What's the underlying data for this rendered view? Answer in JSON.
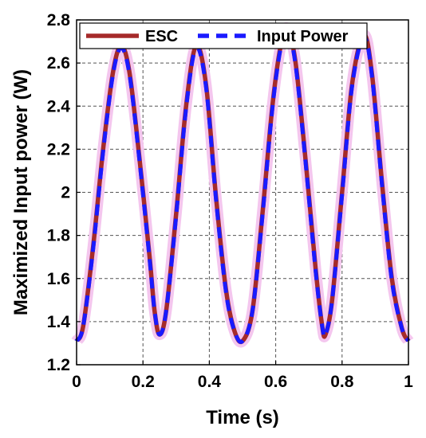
{
  "chart_data": {
    "type": "line",
    "xlabel": "Time (s)",
    "ylabel": "Maximized Input power (W)",
    "xlim": [
      0,
      1
    ],
    "ylim": [
      1.2,
      2.8
    ],
    "xticks": [
      "0",
      "0.2",
      "0.4",
      "0.6",
      "0.8",
      "1"
    ],
    "yticks": [
      "1.2",
      "1.4",
      "1.6",
      "1.8",
      "2",
      "2.2",
      "2.4",
      "2.6",
      "2.8"
    ],
    "grid": true,
    "legend_position": "top",
    "series": [
      {
        "name": "ESC",
        "color": "#a52a2a",
        "style": "solid",
        "points": [
          [
            0,
            1.31
          ],
          [
            0.02,
            1.38
          ],
          [
            0.05,
            1.75
          ],
          [
            0.08,
            2.2
          ],
          [
            0.11,
            2.56
          ],
          [
            0.135,
            2.68
          ],
          [
            0.16,
            2.55
          ],
          [
            0.19,
            2.15
          ],
          [
            0.22,
            1.7
          ],
          [
            0.235,
            1.45
          ],
          [
            0.25,
            1.34
          ],
          [
            0.27,
            1.45
          ],
          [
            0.3,
            1.9
          ],
          [
            0.33,
            2.4
          ],
          [
            0.36,
            2.68
          ],
          [
            0.39,
            2.5
          ],
          [
            0.42,
            1.98
          ],
          [
            0.45,
            1.55
          ],
          [
            0.475,
            1.36
          ],
          [
            0.5,
            1.31
          ],
          [
            0.53,
            1.45
          ],
          [
            0.56,
            1.9
          ],
          [
            0.59,
            2.4
          ],
          [
            0.615,
            2.68
          ],
          [
            0.635,
            2.76
          ],
          [
            0.66,
            2.6
          ],
          [
            0.69,
            2.15
          ],
          [
            0.72,
            1.65
          ],
          [
            0.74,
            1.38
          ],
          [
            0.75,
            1.34
          ],
          [
            0.77,
            1.5
          ],
          [
            0.8,
            2.0
          ],
          [
            0.83,
            2.5
          ],
          [
            0.865,
            2.73
          ],
          [
            0.89,
            2.55
          ],
          [
            0.92,
            2.05
          ],
          [
            0.95,
            1.6
          ],
          [
            0.98,
            1.37
          ],
          [
            1.0,
            1.31
          ]
        ]
      },
      {
        "name": "Input Power",
        "color": "#1a1aff",
        "style": "dashed",
        "points": [
          [
            0,
            1.31
          ],
          [
            0.02,
            1.38
          ],
          [
            0.05,
            1.74
          ],
          [
            0.08,
            2.19
          ],
          [
            0.11,
            2.55
          ],
          [
            0.135,
            2.67
          ],
          [
            0.16,
            2.54
          ],
          [
            0.19,
            2.14
          ],
          [
            0.22,
            1.69
          ],
          [
            0.235,
            1.45
          ],
          [
            0.25,
            1.34
          ],
          [
            0.27,
            1.45
          ],
          [
            0.3,
            1.89
          ],
          [
            0.33,
            2.39
          ],
          [
            0.36,
            2.67
          ],
          [
            0.39,
            2.49
          ],
          [
            0.42,
            1.97
          ],
          [
            0.45,
            1.54
          ],
          [
            0.475,
            1.36
          ],
          [
            0.5,
            1.31
          ],
          [
            0.53,
            1.45
          ],
          [
            0.56,
            1.89
          ],
          [
            0.59,
            2.39
          ],
          [
            0.615,
            2.67
          ],
          [
            0.635,
            2.75
          ],
          [
            0.66,
            2.59
          ],
          [
            0.69,
            2.14
          ],
          [
            0.72,
            1.64
          ],
          [
            0.74,
            1.38
          ],
          [
            0.75,
            1.34
          ],
          [
            0.77,
            1.5
          ],
          [
            0.8,
            1.99
          ],
          [
            0.83,
            2.49
          ],
          [
            0.865,
            2.72
          ],
          [
            0.89,
            2.54
          ],
          [
            0.92,
            2.04
          ],
          [
            0.95,
            1.59
          ],
          [
            0.98,
            1.37
          ],
          [
            1.0,
            1.31
          ]
        ]
      }
    ]
  }
}
